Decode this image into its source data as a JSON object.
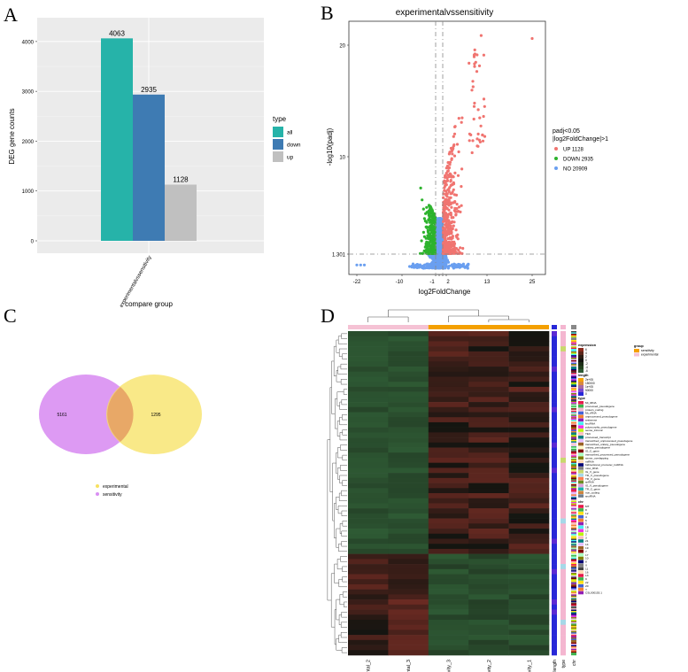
{
  "panel_labels": [
    "A",
    "B",
    "C",
    "D"
  ],
  "chart_data": [
    {
      "type": "bar",
      "panel": "A",
      "categories": [
        "experimentalvssensitivity"
      ],
      "series": [
        {
          "name": "all",
          "values": [
            4063
          ],
          "color": "#26b3a9"
        },
        {
          "name": "down",
          "values": [
            2935
          ],
          "color": "#3e7bb3"
        },
        {
          "name": "up",
          "values": [
            1128
          ],
          "color": "#c0c0c0"
        }
      ],
      "value_labels": [
        "4063",
        "2935",
        "1128"
      ],
      "xlabel": "compare group",
      "ylabel": "DEG gene counts",
      "yticks": [
        "0",
        "1000",
        "2000",
        "3000",
        "4000"
      ],
      "ylim": [
        0,
        4300
      ],
      "legend_title": "type",
      "legend": [
        "all",
        "down",
        "up"
      ],
      "legend_position": "right",
      "grid": true
    },
    {
      "type": "scatter",
      "panel": "B",
      "title": "experimentalvssensitivity",
      "xlabel": "log2FoldChange",
      "ylabel": "-log10(padj)",
      "xtick_labels": [
        "-22",
        "-10",
        "-1",
        "0",
        "1",
        "2",
        "13",
        "25"
      ],
      "ytick_labels": [
        "1.301",
        "10",
        "20"
      ],
      "threshold_padj": 1.301,
      "threshold_lfc": [
        -1,
        1
      ],
      "legend_title": "padj<0.05\n|log2FoldChange|>1",
      "legend_title_lines": [
        "padj<0.05",
        "|log2FoldChange|>1"
      ],
      "legend_position": "right",
      "series": [
        {
          "name": "UP 1128",
          "color": "#f07470",
          "count": 1128
        },
        {
          "name": "DOWN 2935",
          "color": "#2db32d",
          "count": 2935
        },
        {
          "name": "NO 20909",
          "color": "#6a9ff0",
          "count": 20909
        }
      ],
      "notable_points": [
        {
          "x": 25,
          "y": 20.6
        },
        {
          "x": -22,
          "y": 0.3
        },
        {
          "x": -21,
          "y": 0.3
        },
        {
          "x": -20,
          "y": 0.3
        },
        {
          "x": -5,
          "y": 7.2
        }
      ]
    },
    {
      "type": "venn",
      "panel": "C",
      "sets": [
        {
          "name": "sensitivity",
          "color": "#d98ff2",
          "only": "5161"
        },
        {
          "name": "experimental",
          "color": "#f7e160",
          "only": "1295"
        }
      ],
      "intersection": ""
    },
    {
      "type": "heatmap",
      "panel": "D",
      "columns": [
        "experimental_2",
        "experimental_3",
        "Chemsensitivity_3",
        "Chemsensitivity_2",
        "Chemsensitivity_1"
      ],
      "annotation_columns": [
        "length",
        "type",
        "chr"
      ],
      "groups": [
        {
          "name": "experimental",
          "color": "#f5c2d4"
        },
        {
          "name": "sensitivity",
          "color": "#f4a000"
        }
      ],
      "legend_expression_title": "expression",
      "legend_expression_ticks": [
        "6",
        "4",
        "2",
        "0",
        "-2",
        "-4",
        "-6"
      ],
      "legend_length_title": "length",
      "legend_length_ticks": [
        "2e+05",
        "150000",
        "1e+05",
        "50000",
        "0"
      ],
      "legend_type_title": "type",
      "legend_type_items": [
        "Mt_tRNA",
        "processed_pseudogene",
        "protein_coding",
        "Mt_rRNA",
        "unprocessed_pseudogene",
        "antisense",
        "lincRNA",
        "polymorphic_pseudogene",
        "sense_intronic",
        "TEC",
        "processed_transcript",
        "transcribed_unprocessed_pseudogene",
        "transcribed_unitary_pseudogene",
        "unitary_pseudogene",
        "IG_C_gene",
        "transcribed_processed_pseudogene",
        "sense_overlapping",
        "miRNA",
        "bidirectional_promoter_lncRNA",
        "misc_RNA",
        "IG_V_gene",
        "TR_V_pseudogene",
        "TR_V_gene",
        "snRNA",
        "IG_V_pseudogene",
        "TR_C_gene",
        "non_coding",
        "snoRNA"
      ],
      "legend_chr_title": "chr",
      "legend_chr_items": [
        "MT",
        "8",
        "12",
        "4",
        "6",
        "5",
        "1B",
        "12",
        "2",
        "3",
        "21",
        "14",
        "19",
        "7",
        "17",
        "10",
        "8",
        "X",
        "11",
        "16",
        "13",
        "9",
        "22",
        "20",
        "Y",
        "CSL000155.1"
      ],
      "legend_group_title": "group",
      "legend_group_items": [
        "sensitivity",
        "experimental"
      ]
    }
  ],
  "colors": {
    "panel_bg": "#ebebeb",
    "grid": "#ffffff",
    "heat_green": "#2e5a34",
    "heat_black": "#141410",
    "heat_red": "#6b2a22"
  }
}
